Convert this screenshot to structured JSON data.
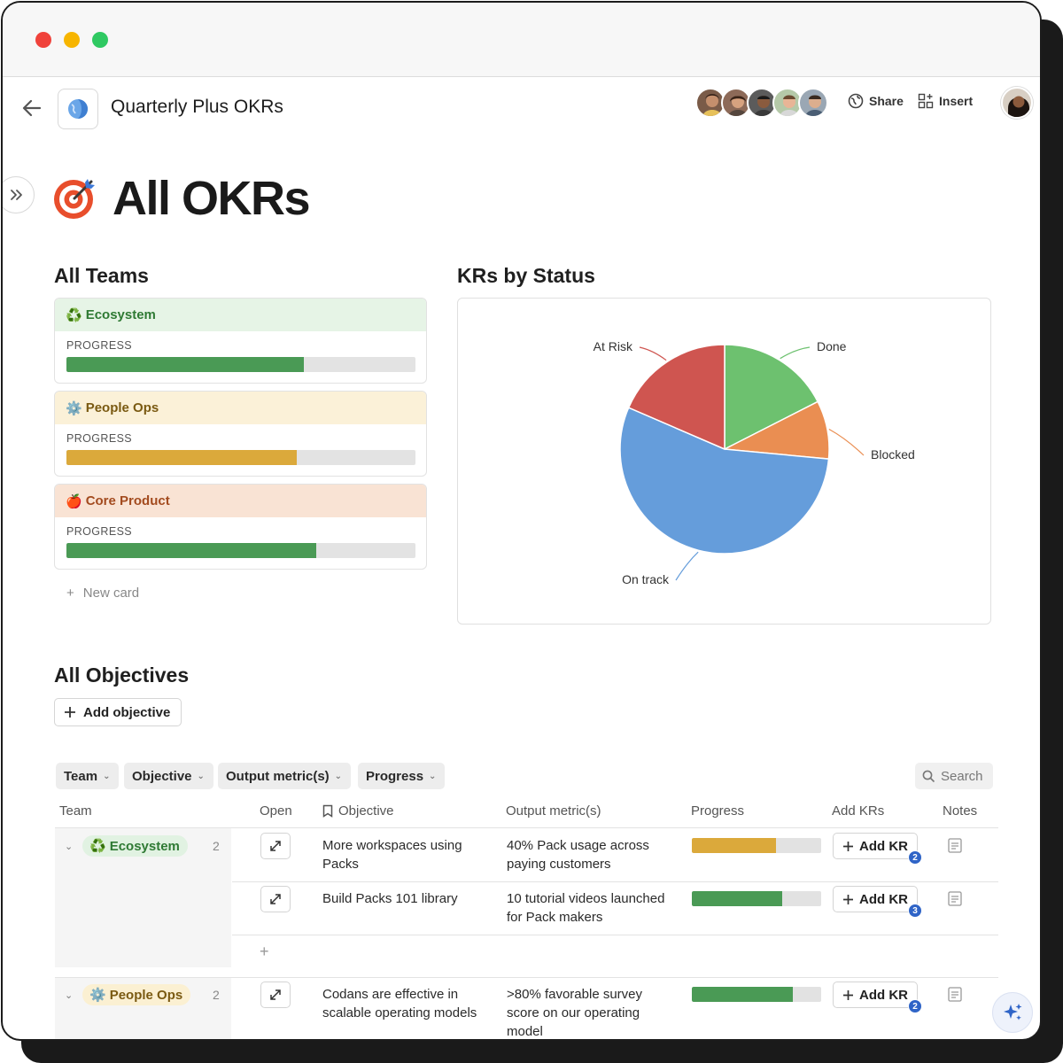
{
  "app": {
    "doc_title": "Quarterly Plus OKRs",
    "share_label": "Share",
    "insert_label": "Insert",
    "colors": {
      "close": "#f0423b",
      "minimize": "#f7b500",
      "zoom": "#2fc962"
    }
  },
  "page": {
    "title": "All OKRs",
    "icon": "target-icon"
  },
  "teams_section": {
    "heading": "All Teams",
    "progress_label": "PROGRESS",
    "new_card_label": "New card",
    "cards": [
      {
        "emoji": "♻️",
        "name": "Ecosystem",
        "progress": 0.68,
        "head_bg": "#e6f4e6",
        "text_color": "#2f7a34",
        "bar_color": "#4a9a55"
      },
      {
        "emoji": "⚙️",
        "name": "People Ops",
        "progress": 0.66,
        "head_bg": "#fbf1d8",
        "text_color": "#7a5a12",
        "bar_color": "#dba93b"
      },
      {
        "emoji": "🍎",
        "name": "Core Product",
        "progress": 0.715,
        "head_bg": "#f9e3d4",
        "text_color": "#a34b1f",
        "bar_color": "#4a9a55"
      }
    ]
  },
  "chart_section": {
    "heading": "KRs by Status"
  },
  "chart_data": {
    "type": "pie",
    "title": "KRs by Status",
    "slices": [
      {
        "label": "Done",
        "value": 17.5,
        "color": "#6dc16f"
      },
      {
        "label": "Blocked",
        "value": 9.0,
        "color": "#ea8e52"
      },
      {
        "label": "On track",
        "value": 55.0,
        "color": "#659ddb"
      },
      {
        "label": "At Risk",
        "value": 18.5,
        "color": "#cf5550"
      }
    ],
    "start_angle_deg": 0,
    "direction": "clockwise",
    "legend": "none (callout labels)"
  },
  "objectives_section": {
    "heading": "All Objectives",
    "add_objective_label": "Add objective",
    "filters": [
      "Team",
      "Objective",
      "Output metric(s)",
      "Progress"
    ],
    "search_label": "Search",
    "columns": [
      "Team",
      "Open",
      "Objective",
      "Output metric(s)",
      "Progress",
      "Add KRs",
      "Notes"
    ],
    "add_kr_label": "Add KR",
    "groups": [
      {
        "emoji": "♻️",
        "team": "Ecosystem",
        "count": "2",
        "pill_bg": "#e6f4e6",
        "pill_color": "#2f7a34",
        "rows": [
          {
            "objective": [
              "More workspaces using",
              "Packs"
            ],
            "metric": [
              "40% Pack usage across",
              "paying customers"
            ],
            "progress": 0.65,
            "bar_color": "#dba93b",
            "kr_count": "2"
          },
          {
            "objective": [
              "Build Packs 101 library"
            ],
            "metric": [
              "10 tutorial videos launched",
              "for Pack makers"
            ],
            "progress": 0.7,
            "bar_color": "#4a9a55",
            "kr_count": "3"
          }
        ]
      },
      {
        "emoji": "⚙️",
        "team": "People Ops",
        "count": "2",
        "pill_bg": "#fbf1d8",
        "pill_color": "#7a5a12",
        "rows": [
          {
            "objective": [
              "Codans are effective in",
              "scalable operating models"
            ],
            "metric": [
              ">80% favorable survey",
              "score on our operating",
              "model"
            ],
            "progress": 0.78,
            "bar_color": "#4a9a55",
            "kr_count": "2"
          }
        ]
      }
    ]
  }
}
